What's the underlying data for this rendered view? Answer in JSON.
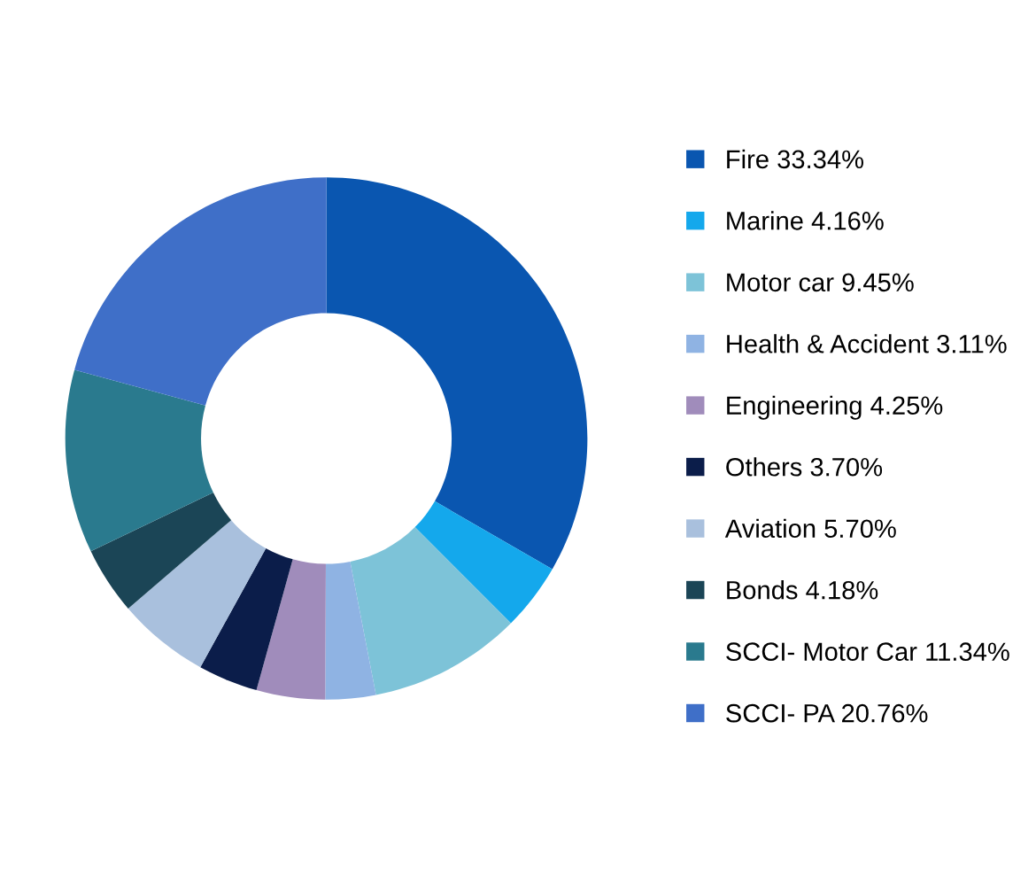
{
  "chart_data": {
    "type": "donut",
    "categories": [
      "Fire",
      "Marine",
      "Motor car",
      "Health & Accident",
      "Engineering",
      "Others",
      "Aviation",
      "Bonds",
      "SCCI- Motor Car",
      "SCCI- PA"
    ],
    "values": [
      33.34,
      4.16,
      9.45,
      3.11,
      4.25,
      3.7,
      5.7,
      4.18,
      11.34,
      20.76
    ],
    "value_labels": [
      "33.34%",
      "4.16%",
      "9.45%",
      "3.11%",
      "4.25%",
      "3.70%",
      "5.70%",
      "4.18%",
      "11.34%",
      "20.76%"
    ],
    "colors": [
      "#0a56b0",
      "#14a8ec",
      "#7dc3d8",
      "#8fb3e3",
      "#a08cbb",
      "#0b1d4a",
      "#a9c0dd",
      "#1b4556",
      "#2a7a8e",
      "#3f6fc8"
    ],
    "legend": "right"
  }
}
